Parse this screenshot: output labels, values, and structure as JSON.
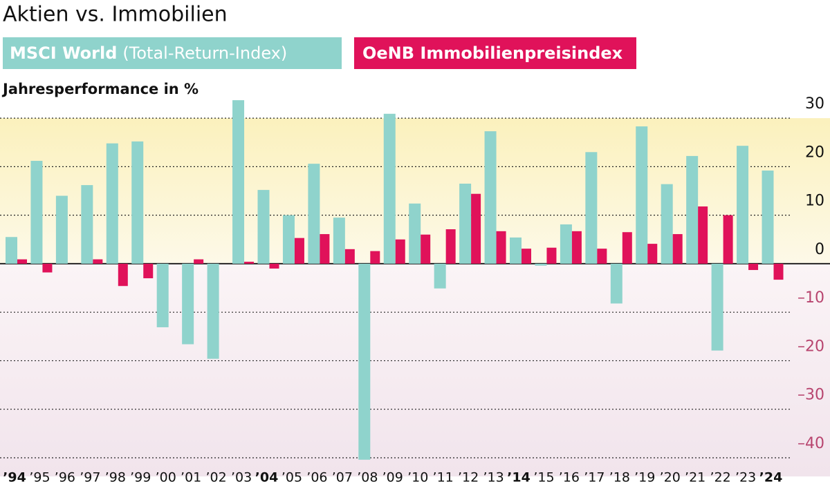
{
  "chart_data": {
    "type": "bar",
    "title": "Aktien vs. Immobilien",
    "y_label": "Jahresperformance in %",
    "categories": [
      "’94",
      "’95",
      "’96",
      "’97",
      "’98",
      "’99",
      "’00",
      "’01",
      "’02",
      "’03",
      "’04",
      "’05",
      "’06",
      "’07",
      "’08",
      "’09",
      "’10",
      "’11",
      "’12",
      "’13",
      "’14",
      "’15",
      "’16",
      "’17",
      "’18",
      "’19",
      "’20",
      "’21",
      "’22",
      "’23",
      "’24"
    ],
    "series": [
      {
        "name": "MSCI World",
        "description": "(Total-Return-Index)",
        "color": "#8fd3cc",
        "values": [
          5.5,
          21.2,
          14,
          16.2,
          24.8,
          25.2,
          -13.1,
          -16.6,
          -19.6,
          33.7,
          15.2,
          10,
          20.6,
          9.5,
          -40.4,
          30.9,
          12.4,
          -5.1,
          16.5,
          27.3,
          5.4,
          -0.4,
          8.1,
          23,
          -8.2,
          28.3,
          16.4,
          22.2,
          -17.9,
          24.3,
          19.2
        ]
      },
      {
        "name": "OeNB Immobilienpreisindex",
        "color": "#e0125a",
        "values": [
          0.9,
          -1.8,
          null,
          0.9,
          -4.6,
          -3,
          null,
          0.9,
          null,
          0.4,
          -1,
          5.3,
          6.1,
          3,
          2.6,
          5,
          6,
          7.1,
          14.4,
          6.7,
          3.1,
          3.3,
          6.7,
          3.1,
          6.5,
          4.1,
          6.1,
          11.8,
          10,
          -1.3,
          -3.3
        ]
      }
    ],
    "ylim": [
      -41,
      34
    ],
    "yticks": [
      30,
      20,
      10,
      0,
      {
        "value": -10,
        "label": "–10"
      },
      {
        "value": -20,
        "label": "–20"
      },
      {
        "value": -30,
        "label": "–30"
      },
      {
        "value": -40,
        "label": "–40"
      }
    ],
    "grid": true
  }
}
